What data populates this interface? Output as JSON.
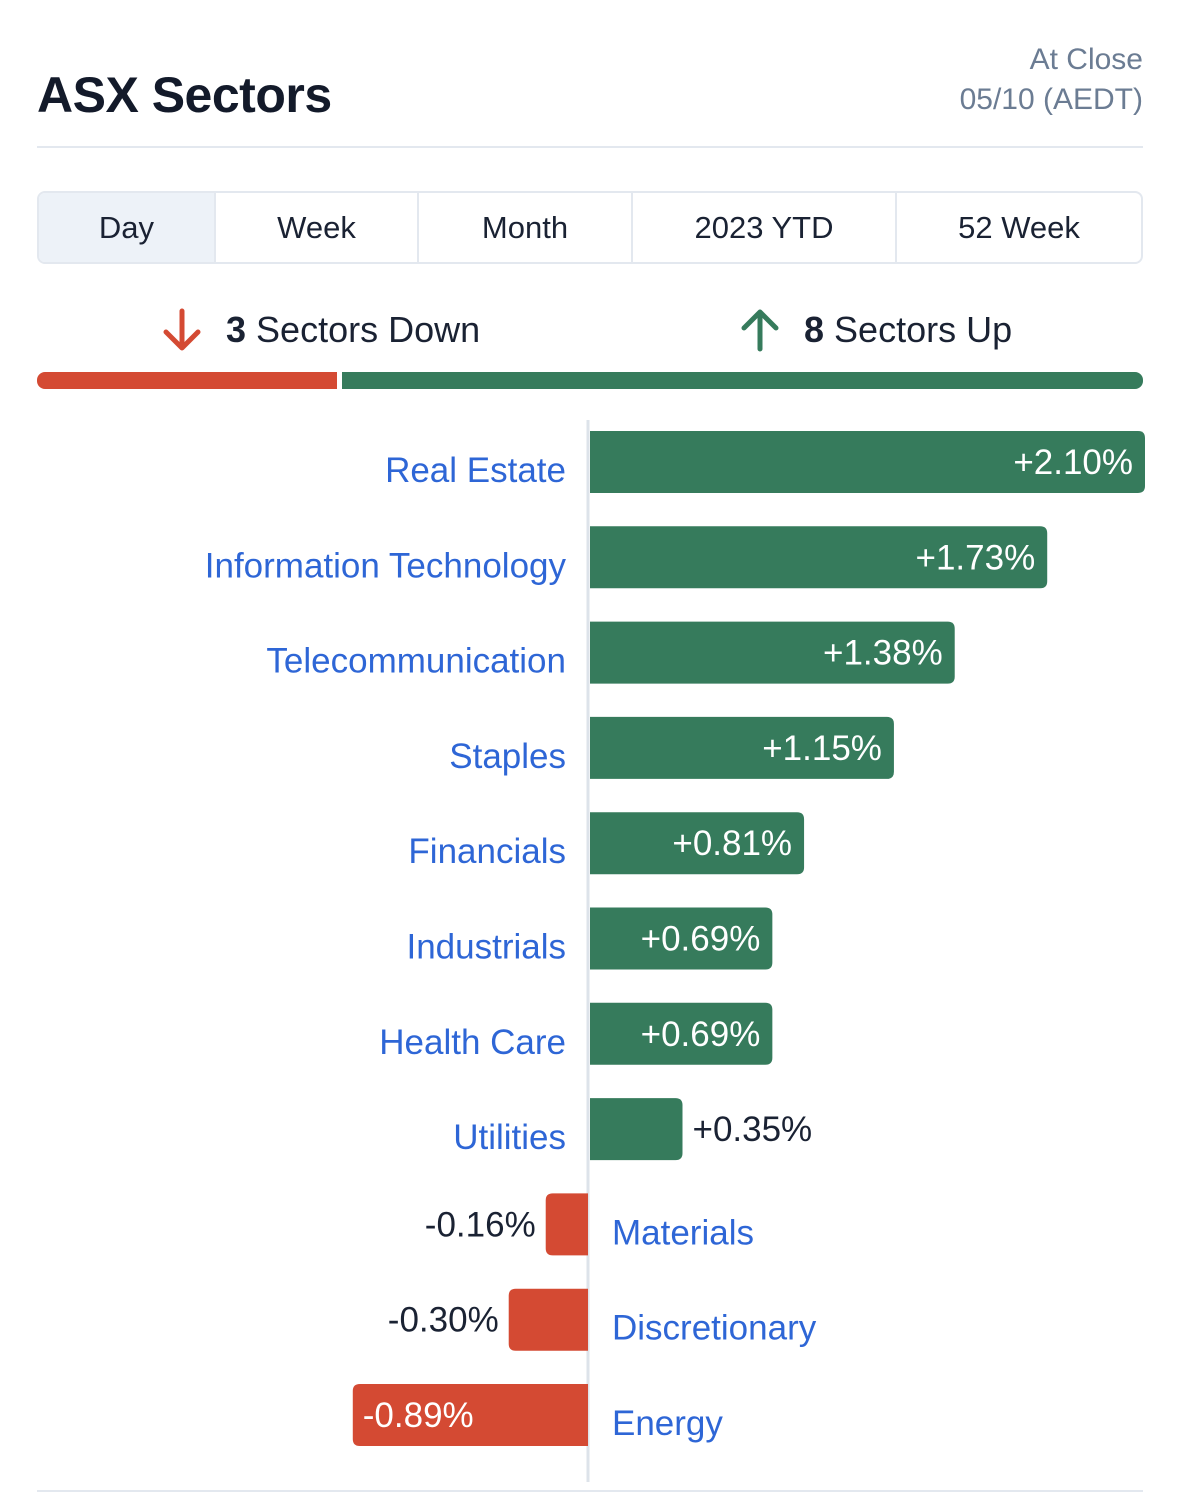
{
  "header": {
    "title": "ASX Sectors",
    "status_line1": "At Close",
    "status_line2": "05/10 (AEDT)"
  },
  "tabs": [
    {
      "label": "Day",
      "active": true
    },
    {
      "label": "Week",
      "active": false
    },
    {
      "label": "Month",
      "active": false
    },
    {
      "label": "2023 YTD",
      "active": false
    },
    {
      "label": "52 Week",
      "active": false
    }
  ],
  "summary": {
    "down_count": "3",
    "down_label": "Sectors Down",
    "up_count": "8",
    "up_label": "Sectors Up"
  },
  "colors": {
    "up": "#367b5c",
    "down": "#d44a33",
    "link": "#2e66d6",
    "axis": "#dde3ea"
  },
  "icons": {
    "down": "arrow-down-icon",
    "up": "arrow-up-icon"
  },
  "chart_data": {
    "type": "bar",
    "orientation": "horizontal",
    "categories": [
      "Real Estate",
      "Information Technology",
      "Telecommunication",
      "Staples",
      "Financials",
      "Industrials",
      "Health Care",
      "Utilities",
      "Materials",
      "Discretionary",
      "Energy"
    ],
    "values": [
      2.1,
      1.73,
      1.38,
      1.15,
      0.81,
      0.69,
      0.69,
      0.35,
      -0.16,
      -0.3,
      -0.89
    ],
    "value_labels": [
      "+2.10%",
      "+1.73%",
      "+1.38%",
      "+1.15%",
      "+0.81%",
      "+0.69%",
      "+0.69%",
      "+0.35%",
      "-0.16%",
      "-0.30%",
      "-0.89%"
    ],
    "title": "",
    "xlabel": "",
    "ylabel": "",
    "xlim": [
      -0.89,
      2.1
    ],
    "grid": false,
    "legend": "none"
  }
}
